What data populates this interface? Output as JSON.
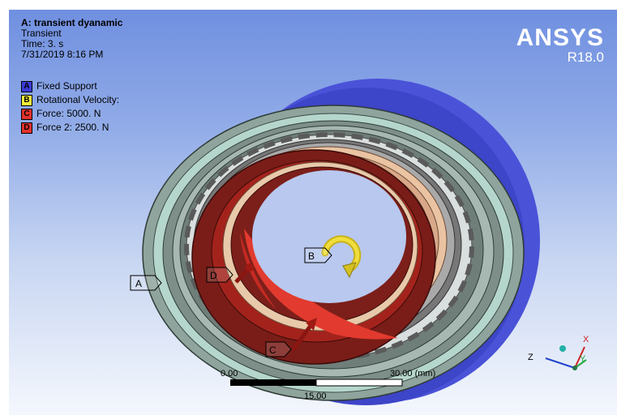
{
  "analysis": {
    "title": "A: transient dyanamic",
    "type": "Transient",
    "time": "Time: 3. s",
    "date": "7/31/2019 8:16 PM"
  },
  "legend": [
    {
      "key": "A",
      "label": "Fixed Support",
      "color": "#3a3ad8"
    },
    {
      "key": "B",
      "label": "Rotational Velocity:",
      "color": "#f5f03a"
    },
    {
      "key": "C",
      "label": "Force: 5000. N",
      "color": "#e2322a"
    },
    {
      "key": "D",
      "label": "Force 2: 2500. N",
      "color": "#e2322a"
    }
  ],
  "logo": {
    "name": "ANSYS",
    "version": "R18.0"
  },
  "annotations": {
    "a": "A",
    "b": "B",
    "c": "C",
    "d": "D"
  },
  "scale": {
    "start": "0.00",
    "end": "30.00 (mm)",
    "mid": "15.00"
  },
  "triad": {
    "x": "X",
    "y": "Y",
    "z": "Z"
  }
}
